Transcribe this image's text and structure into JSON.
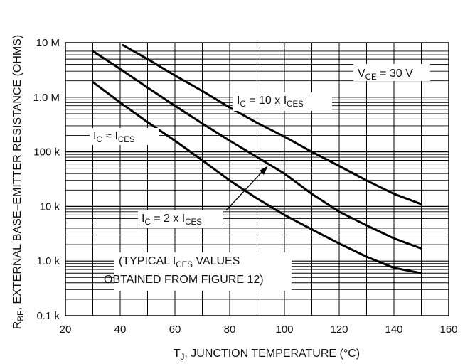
{
  "chart_data": {
    "type": "line",
    "scale": {
      "x": "linear",
      "y": "log"
    },
    "xlim": [
      20,
      160
    ],
    "ylim": [
      100,
      10000000
    ],
    "x_ticks": [
      20,
      40,
      60,
      80,
      100,
      120,
      140,
      160
    ],
    "y_ticks": [
      {
        "value": 100,
        "label": "0.1 k"
      },
      {
        "value": 1000,
        "label": "1.0 k"
      },
      {
        "value": 10000,
        "label": "10 k"
      },
      {
        "value": 100000,
        "label": "100 k"
      },
      {
        "value": 1000000,
        "label": "1.0 M"
      },
      {
        "value": 10000000,
        "label": "10 M"
      }
    ],
    "xlabel": {
      "main": "T",
      "sub": "J",
      "rest": ", JUNCTION TEMPERATURE (°C)"
    },
    "ylabel": {
      "main": "R",
      "sub": "BE",
      "rest": ", EXTERNAL BASE–EMITTER RESISTANCE (OHMS)"
    },
    "grid": true,
    "series": [
      {
        "name": "IC = 10 x ICES",
        "x": [
          41,
          50,
          60,
          70,
          80,
          90,
          100,
          110,
          120,
          130,
          140,
          150
        ],
        "y": [
          9000000,
          5000000,
          2500000,
          1300000,
          650000,
          340000,
          190000,
          100000,
          55000,
          30000,
          17000,
          11000
        ]
      },
      {
        "name": "IC = 2 x ICES",
        "x": [
          30,
          40,
          50,
          60,
          70,
          80,
          90,
          100,
          110,
          120,
          130,
          140,
          150
        ],
        "y": [
          7000000,
          3300000,
          1500000,
          700000,
          330000,
          160000,
          80000,
          40000,
          17000,
          8000,
          4500,
          2600,
          1700
        ]
      },
      {
        "name": "IC ≈ ICES",
        "x": [
          30,
          40,
          50,
          60,
          70,
          80,
          90,
          100,
          110,
          120,
          130,
          140,
          150
        ],
        "y": [
          1900000,
          800000,
          350000,
          160000,
          70000,
          30000,
          14000,
          7000,
          3800,
          2100,
          1200,
          750,
          600
        ]
      }
    ],
    "annotations": [
      {
        "main": "V",
        "sub": "CE",
        "rest": " = 30 V"
      },
      {
        "main": "I",
        "sub": "C",
        "rest": " = 10 x I",
        "sub2": "CES"
      },
      {
        "main": "I",
        "sub": "C",
        "rest": " ≈ I",
        "sub2": "CES"
      },
      {
        "main": "I",
        "sub": "C",
        "rest": " = 2 x I",
        "sub2": "CES"
      },
      {
        "pre": "(TYPICAL I",
        "sub": "CES",
        "rest": " VALUES"
      },
      {
        "text": "OBTAINED FROM FIGURE 12)"
      }
    ]
  }
}
